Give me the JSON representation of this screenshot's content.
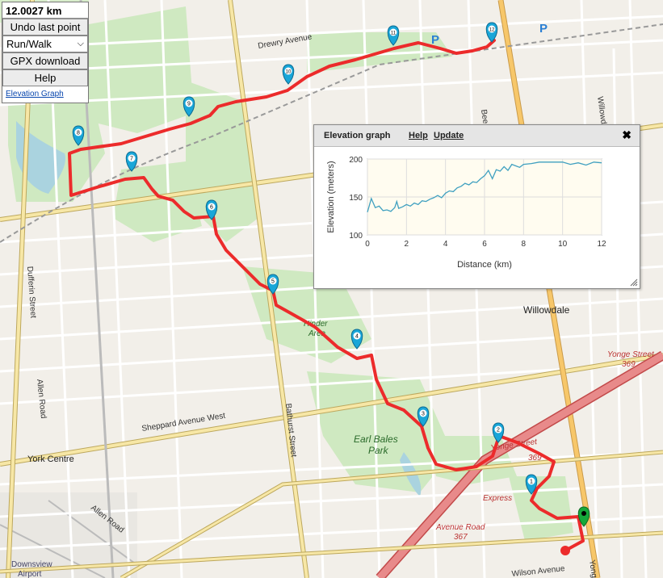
{
  "controls": {
    "distance": "12.0027 km",
    "undo_label": "Undo last point",
    "activity_selected": "Run/Walk",
    "gpx_label": "GPX download",
    "help_label": "Help",
    "elevation_link": "Elevation Graph"
  },
  "map_labels": {
    "drewry": "Drewry Avenue",
    "dufferin": "Dufferin Street",
    "allen_road": "Allen Road",
    "allen_road_lower": "Allen Road",
    "york_centre": "York Centre",
    "sheppard": "Sheppard Avenue West",
    "bathurst": "Bathurst Street",
    "earl_bales": "Earl Bales",
    "park": "Park",
    "hinder": "Hinder",
    "area": "Area",
    "willowdale": "Willowdale",
    "yonge_369": "Yonge Street",
    "yonge_369_num": "369",
    "yonge_mid": "Yonge Street",
    "yonge_mid_num": "369",
    "express": "Express",
    "avenue_road": "Avenue Road",
    "avenue_road_num": "367",
    "wilson": "Wilson Avenue",
    "yonge_bottom": "Yonge",
    "downsview": "Downsview",
    "airport": "Airport",
    "willowd": "Willowd",
    "bee": "Bee"
  },
  "markers": [
    "1",
    "2",
    "3",
    "4",
    "5",
    "6",
    "7",
    "8",
    "9",
    "10",
    "11",
    "12"
  ],
  "parking": "P",
  "colors": {
    "route": "#ec2b2b",
    "marker": "#19a6d8",
    "start": "#15a83a",
    "park": "#cfe9c1",
    "road_major": "#f7d77f"
  },
  "elevation_popup": {
    "title": "Elevation graph",
    "help": "Help",
    "update": "Update",
    "close_icon": "close-icon"
  },
  "chart_data": {
    "type": "line",
    "title": "",
    "xlabel": "Distance (km)",
    "ylabel": "Elevation (meters)",
    "xlim": [
      0,
      12
    ],
    "ylim": [
      100,
      200
    ],
    "x_ticks": [
      "0",
      "2",
      "4",
      "6",
      "8",
      "10",
      "12"
    ],
    "y_ticks": [
      "200",
      "150",
      "100"
    ],
    "grid": true,
    "series": [
      {
        "x": [
          0,
          0.2,
          0.4,
          0.6,
          0.8,
          1.0,
          1.2,
          1.4,
          1.5,
          1.6,
          1.8,
          2.0,
          2.2,
          2.4,
          2.6,
          2.8,
          3.0,
          3.2,
          3.4,
          3.6,
          3.8,
          4.0,
          4.2,
          4.4,
          4.6,
          4.8,
          5.0,
          5.2,
          5.4,
          5.6,
          5.8,
          6.0,
          6.2,
          6.4,
          6.6,
          6.8,
          7.0,
          7.2,
          7.4,
          7.6,
          7.8,
          8.0,
          8.4,
          8.8,
          9.2,
          9.6,
          10.0,
          10.4,
          10.8,
          11.2,
          11.6,
          12.0
        ],
        "y": [
          130,
          148,
          136,
          138,
          132,
          133,
          131,
          136,
          144,
          135,
          137,
          140,
          138,
          142,
          140,
          145,
          144,
          147,
          149,
          152,
          149,
          155,
          158,
          157,
          162,
          164,
          168,
          166,
          170,
          169,
          174,
          178,
          185,
          174,
          186,
          184,
          190,
          185,
          193,
          191,
          189,
          193,
          194,
          196,
          196,
          196,
          196,
          193,
          195,
          192,
          196,
          195
        ]
      }
    ]
  }
}
